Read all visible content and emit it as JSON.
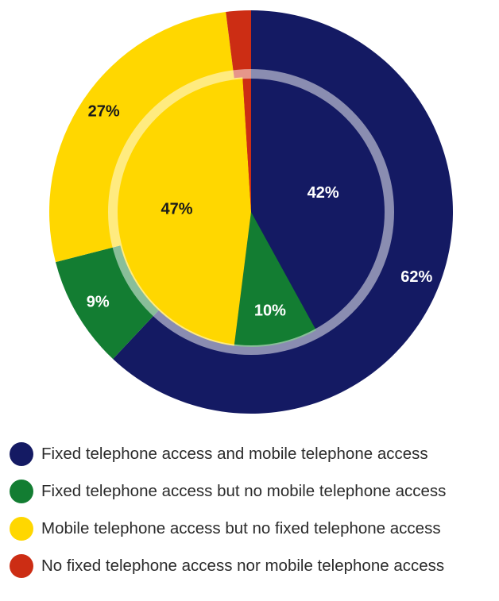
{
  "chart_data": [
    {
      "type": "pie",
      "ring": "outer",
      "categories": [
        "Fixed telephone access and mobile telephone access",
        "Fixed telephone access but no mobile telephone access",
        "Mobile telephone access but no fixed telephone access",
        "No fixed telephone access nor mobile telephone access"
      ],
      "values": [
        62,
        9,
        27,
        2
      ],
      "value_labels": [
        "62%",
        "9%",
        "27%",
        ""
      ]
    },
    {
      "type": "pie",
      "ring": "inner",
      "categories": [
        "Fixed telephone access and mobile telephone access",
        "Fixed telephone access but no mobile telephone access",
        "Mobile telephone access but no fixed telephone access",
        "No fixed telephone access nor mobile telephone access"
      ],
      "values": [
        42,
        10,
        47,
        1
      ],
      "value_labels": [
        "42%",
        "10%",
        "47%",
        ""
      ]
    }
  ],
  "colors": [
    "#141a63",
    "#137d32",
    "#ffd700",
    "#cc2d14"
  ],
  "label_colors": [
    "#ffffff",
    "#ffffff",
    "#1a1a1a",
    "#ffffff"
  ],
  "legend": {
    "items": [
      {
        "label": "Fixed telephone access and mobile telephone access",
        "color": "#141a63"
      },
      {
        "label": "Fixed telephone access but no mobile telephone access",
        "color": "#137d32"
      },
      {
        "label": "Mobile telephone access but no fixed telephone access",
        "color": "#ffd700"
      },
      {
        "label": "No fixed telephone access nor mobile telephone access",
        "color": "#cc2d14"
      }
    ]
  }
}
